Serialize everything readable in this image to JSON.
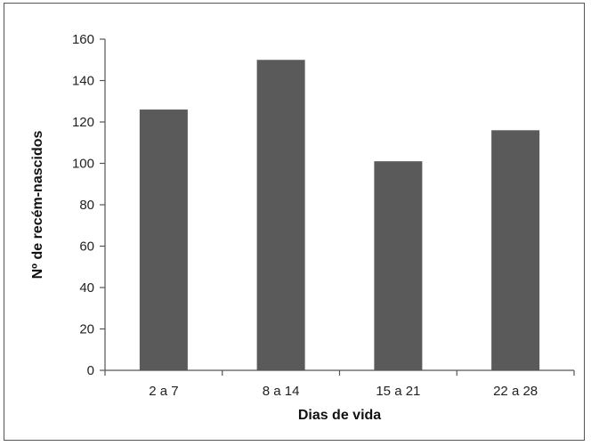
{
  "chart_data": {
    "type": "bar",
    "categories": [
      "2 a 7",
      "8 a 14",
      "15 a 21",
      "22 a 28"
    ],
    "values": [
      126,
      150,
      101,
      116
    ],
    "xlabel": "Dias de vida",
    "ylabel": "Nº de recém-nascidos",
    "ylim": [
      0,
      160
    ],
    "yticks": [
      0,
      20,
      40,
      60,
      80,
      100,
      120,
      140,
      160
    ],
    "grid": false,
    "legend": "none",
    "bar_color": "#5a5a5a",
    "axis_color": "#555555"
  }
}
